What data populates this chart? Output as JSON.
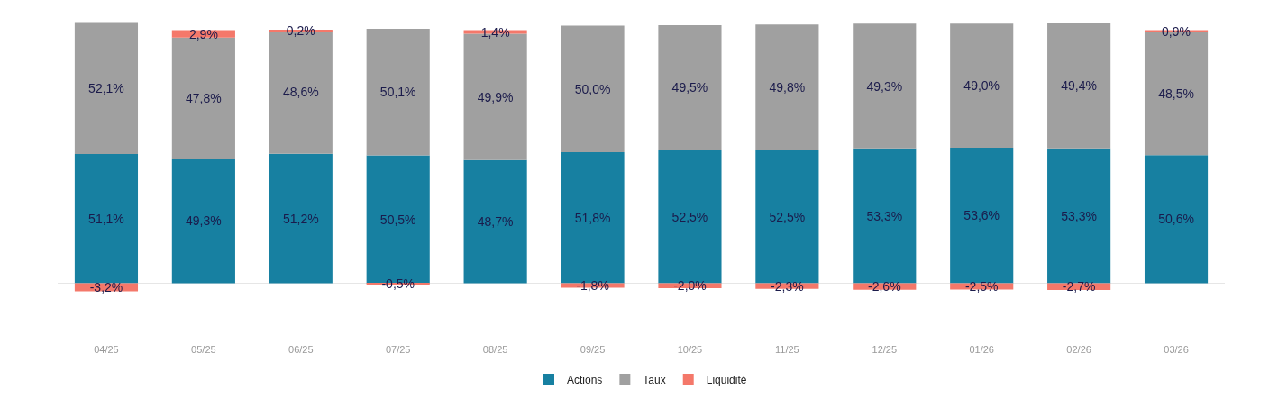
{
  "chart_data": {
    "type": "bar",
    "stacked": true,
    "categories": [
      "04/25",
      "05/25",
      "06/25",
      "07/25",
      "08/25",
      "09/25",
      "10/25",
      "11/25",
      "12/25",
      "01/26",
      "02/26",
      "03/26"
    ],
    "series": [
      {
        "name": "Actions",
        "color": "#1780a1",
        "values": [
          51.1,
          49.3,
          51.2,
          50.5,
          48.7,
          51.8,
          52.5,
          52.5,
          53.3,
          53.6,
          53.3,
          50.6
        ],
        "value_labels": [
          "51,1%",
          "49,3%",
          "51,2%",
          "50,5%",
          "48,7%",
          "51,8%",
          "52,5%",
          "52,5%",
          "53,3%",
          "53,6%",
          "53,3%",
          "50,6%"
        ]
      },
      {
        "name": "Taux",
        "color": "#a0a0a0",
        "values": [
          52.1,
          47.8,
          48.6,
          50.1,
          49.9,
          50.0,
          49.5,
          49.8,
          49.3,
          49.0,
          49.4,
          48.5
        ],
        "value_labels": [
          "52,1%",
          "47,8%",
          "48,6%",
          "50,1%",
          "49,9%",
          "50,0%",
          "49,5%",
          "49,8%",
          "49,3%",
          "49,0%",
          "49,4%",
          "48,5%"
        ]
      },
      {
        "name": "Liquidité",
        "color": "#f4786a",
        "values": [
          -3.2,
          2.9,
          0.2,
          -0.5,
          1.4,
          -1.8,
          -2.0,
          -2.3,
          -2.6,
          -2.5,
          -2.7,
          0.9
        ],
        "value_labels": [
          "-3,2%",
          "2,9%",
          "0,2%",
          "-0,5%",
          "1,4%",
          "-1,8%",
          "-2,0%",
          "-2,3%",
          "-2,6%",
          "-2,5%",
          "-2,7%",
          "0,9%"
        ]
      }
    ],
    "tick_labels": "x",
    "legend": "bottom"
  }
}
